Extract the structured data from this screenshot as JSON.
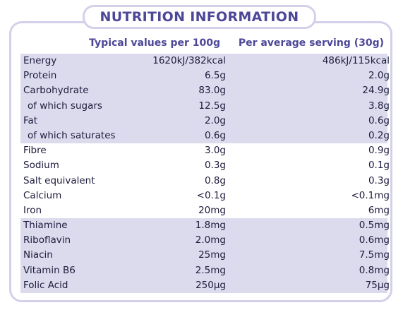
{
  "title": "NUTRITION INFORMATION",
  "headers": {
    "per_100g": "Typical values per 100g",
    "per_serving": "Per average serving (30g)"
  },
  "colors": {
    "accent": "#4c4797",
    "band": "#dcdbee",
    "border": "#d3d1ea"
  },
  "rows": [
    {
      "name": "Energy",
      "per_100g": "1620kJ/382kcal",
      "per_serving": "486kJ/115kcal"
    },
    {
      "name": "Protein",
      "per_100g": "6.5g",
      "per_serving": "2.0g"
    },
    {
      "name": "Carbohydrate",
      "per_100g": "83.0g",
      "per_serving": "24.9g"
    },
    {
      "name": "of which sugars",
      "per_100g": "12.5g",
      "per_serving": "3.8g"
    },
    {
      "name": "Fat",
      "per_100g": "2.0g",
      "per_serving": "0.6g"
    },
    {
      "name": "of which saturates",
      "per_100g": "0.6g",
      "per_serving": "0.2g"
    },
    {
      "name": "Fibre",
      "per_100g": "3.0g",
      "per_serving": "0.9g"
    },
    {
      "name": "Sodium",
      "per_100g": "0.3g",
      "per_serving": "0.1g"
    },
    {
      "name": "Salt equivalent",
      "per_100g": "0.8g",
      "per_serving": "0.3g"
    },
    {
      "name": "Calcium",
      "per_100g": "<0.1g",
      "per_serving": "<0.1mg"
    },
    {
      "name": "Iron",
      "per_100g": "20mg",
      "per_serving": "6mg"
    },
    {
      "name": "Thiamine",
      "per_100g": "1.8mg",
      "per_serving": "0.5mg"
    },
    {
      "name": "Riboflavin",
      "per_100g": "2.0mg",
      "per_serving": "0.6mg"
    },
    {
      "name": "Niacin",
      "per_100g": "25mg",
      "per_serving": "7.5mg"
    },
    {
      "name": "Vitamin B6",
      "per_100g": "2.5mg",
      "per_serving": "0.8mg"
    },
    {
      "name": "Folic Acid",
      "per_100g": "250µg",
      "per_serving": "75µg"
    }
  ]
}
